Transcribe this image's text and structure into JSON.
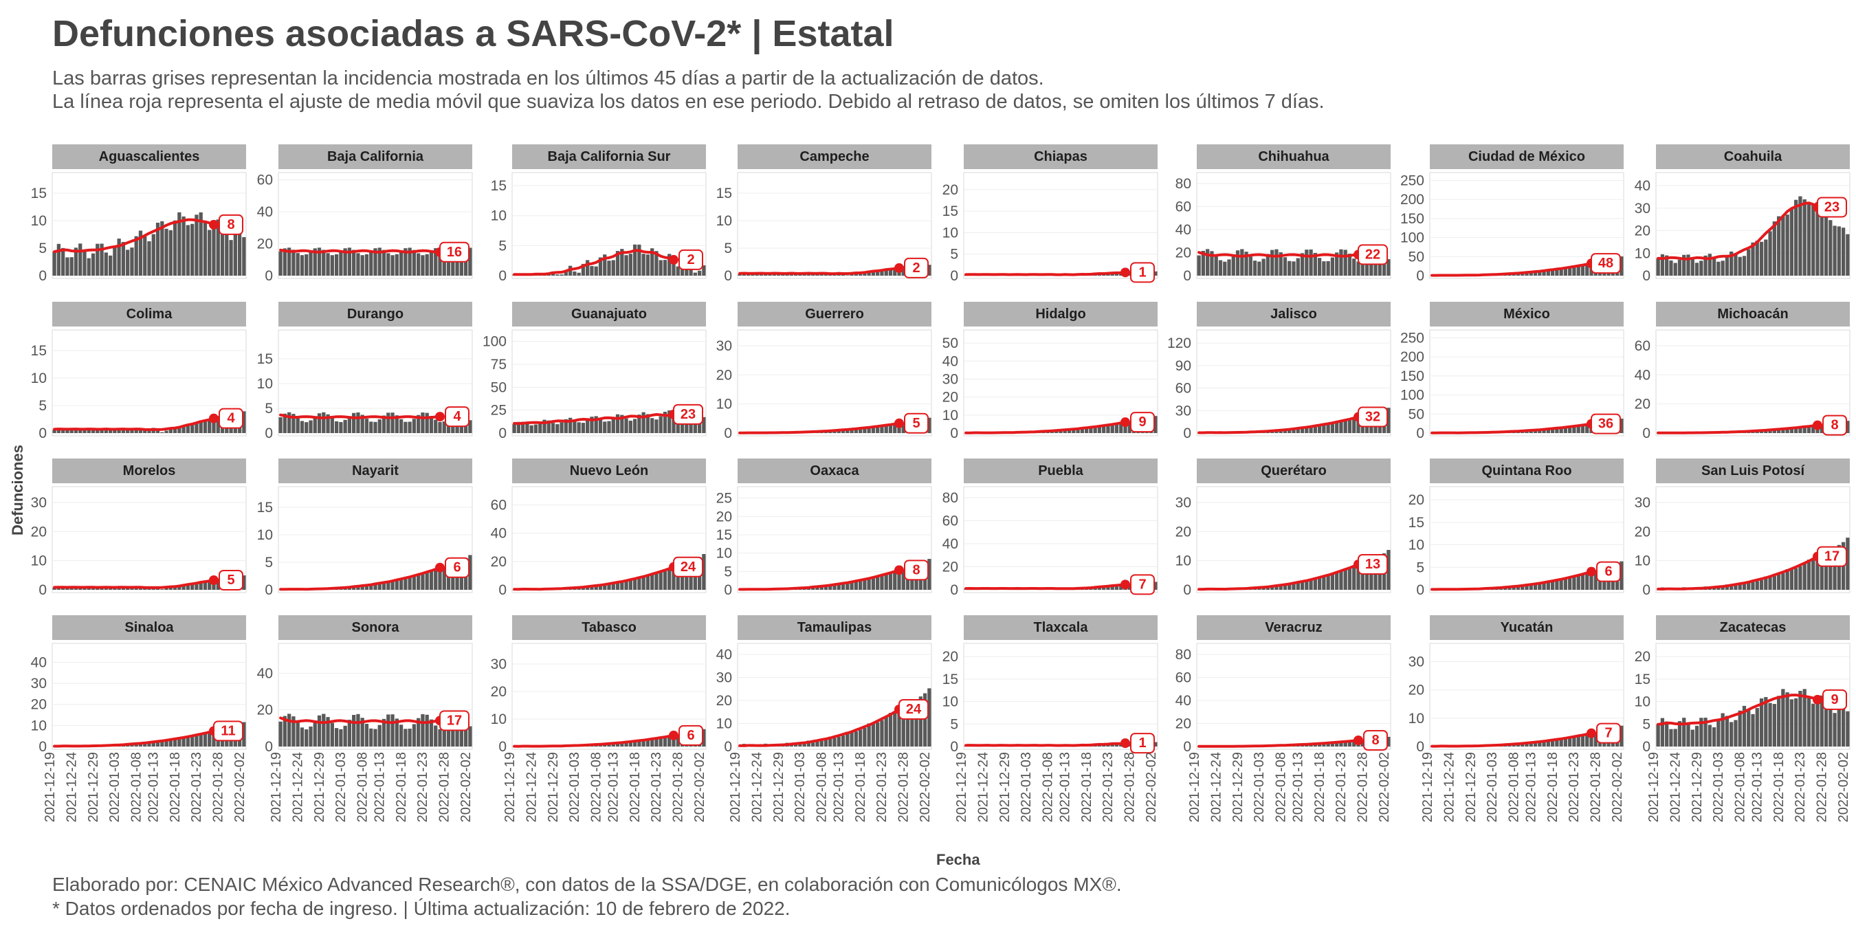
{
  "title": "Defunciones asociadas a SARS-CoV-2* | Estatal",
  "subtitle": {
    "line1": "Las barras grises representan la incidencia mostrada en los últimos 45 días a partir de la actualización de datos.",
    "line2": "La línea roja representa el ajuste de media móvil que suaviza los datos en ese periodo. Debido al retraso de datos, se omiten los últimos 7 días."
  },
  "footer": {
    "line1": "Elaborado por: CENAIC México Advanced Research®, con datos de la SSA/DGE, en colaboración con Comunicólogos MX®.",
    "line2": "* Datos ordenados por fecha de ingreso. | Última actualización: 10 de febrero de 2022."
  },
  "chart_data": {
    "type": "bar",
    "xlabel": "Fecha",
    "ylabel": "Defunciones",
    "x_ticks": [
      "2021-12-19",
      "2021-12-24",
      "2021-12-29",
      "2022-01-03",
      "2022-01-08",
      "2022-01-13",
      "2022-01-18",
      "2022-01-23",
      "2022-01-28",
      "2022-02-02"
    ],
    "colors": {
      "bar": "#595959",
      "line": "#e31a1c",
      "strip": "#b3b3b3",
      "label_text": "#e31a1c"
    },
    "facets": [
      {
        "name": "Aguascalientes",
        "yticks": [
          0,
          5,
          10,
          15
        ],
        "ymax": 18,
        "last": 8,
        "pattern": "bumpy-mid"
      },
      {
        "name": "Baja California",
        "yticks": [
          0,
          20,
          40,
          60
        ],
        "ymax": 62,
        "last": 16,
        "pattern": "flat-high"
      },
      {
        "name": "Baja California Sur",
        "yticks": [
          0,
          5,
          10,
          15
        ],
        "ymax": 16.5,
        "last": 2,
        "pattern": "mid-peak"
      },
      {
        "name": "Campeche",
        "yticks": [
          0,
          5,
          10,
          15
        ],
        "ymax": 18,
        "last": 2,
        "pattern": "late-small"
      },
      {
        "name": "Chiapas",
        "yticks": [
          0,
          5,
          10,
          15,
          20
        ],
        "ymax": 23,
        "last": 1,
        "pattern": "late-small"
      },
      {
        "name": "Chihuahua",
        "yticks": [
          0,
          20,
          40,
          60,
          80
        ],
        "ymax": 86,
        "last": 22,
        "pattern": "flat-mid"
      },
      {
        "name": "Ciudad de México",
        "yticks": [
          0,
          50,
          100,
          150,
          200,
          250
        ],
        "ymax": 260,
        "last": 48,
        "pattern": "late-rise"
      },
      {
        "name": "Coahuila",
        "yticks": [
          0,
          10,
          20,
          30,
          40
        ],
        "ymax": 44,
        "last": 23,
        "pattern": "peak-late"
      },
      {
        "name": "Colima",
        "yticks": [
          0,
          5,
          10,
          15
        ],
        "ymax": 18,
        "last": 4,
        "pattern": "late-small"
      },
      {
        "name": "Durango",
        "yticks": [
          0,
          5,
          10,
          15
        ],
        "ymax": 20,
        "last": 4,
        "pattern": "flat-mid"
      },
      {
        "name": "Guanajuato",
        "yticks": [
          0,
          25,
          50,
          75,
          100
        ],
        "ymax": 108,
        "last": 23,
        "pattern": "rise-flat"
      },
      {
        "name": "Guerrero",
        "yticks": [
          0,
          10,
          20,
          30
        ],
        "ymax": 34,
        "last": 5,
        "pattern": "late-rise"
      },
      {
        "name": "Hidalgo",
        "yticks": [
          0,
          10,
          20,
          30,
          40,
          50
        ],
        "ymax": 55,
        "last": 9,
        "pattern": "late-rise"
      },
      {
        "name": "Jalisco",
        "yticks": [
          0,
          30,
          60,
          90,
          120
        ],
        "ymax": 132,
        "last": 32,
        "pattern": "late-rise"
      },
      {
        "name": "México",
        "yticks": [
          0,
          50,
          100,
          150,
          200,
          250
        ],
        "ymax": 260,
        "last": 36,
        "pattern": "late-rise"
      },
      {
        "name": "Michoacán",
        "yticks": [
          0,
          20,
          40,
          60
        ],
        "ymax": 68,
        "last": 8,
        "pattern": "late-rise"
      },
      {
        "name": "Morelos",
        "yticks": [
          0,
          10,
          20,
          30
        ],
        "ymax": 34,
        "last": 5,
        "pattern": "late-small"
      },
      {
        "name": "Nayarit",
        "yticks": [
          0,
          5,
          10,
          15
        ],
        "ymax": 18,
        "last": 6,
        "pattern": "late-rise"
      },
      {
        "name": "Nuevo León",
        "yticks": [
          0,
          20,
          40,
          60
        ],
        "ymax": 70,
        "last": 24,
        "pattern": "late-rise"
      },
      {
        "name": "Oaxaca",
        "yticks": [
          0,
          5,
          10,
          15,
          20,
          25
        ],
        "ymax": 27,
        "last": 8,
        "pattern": "late-rise"
      },
      {
        "name": "Puebla",
        "yticks": [
          0,
          20,
          40,
          60,
          80
        ],
        "ymax": 86,
        "last": 7,
        "pattern": "late-small"
      },
      {
        "name": "Querétaro",
        "yticks": [
          0,
          10,
          20,
          30
        ],
        "ymax": 34,
        "last": 13,
        "pattern": "late-rise"
      },
      {
        "name": "Quintana Roo",
        "yticks": [
          0,
          5,
          10,
          15,
          20
        ],
        "ymax": 22,
        "last": 6,
        "pattern": "late-rise"
      },
      {
        "name": "San Luis Potosí",
        "yticks": [
          0,
          10,
          20,
          30
        ],
        "ymax": 34,
        "last": 17,
        "pattern": "late-rise"
      },
      {
        "name": "Sinaloa",
        "yticks": [
          0,
          10,
          20,
          30,
          40
        ],
        "ymax": 47,
        "last": 11,
        "pattern": "late-rise"
      },
      {
        "name": "Sonora",
        "yticks": [
          0,
          20,
          40
        ],
        "ymax": 54,
        "last": 17,
        "pattern": "flat-mid"
      },
      {
        "name": "Tabasco",
        "yticks": [
          0,
          10,
          20,
          30
        ],
        "ymax": 36,
        "last": 6,
        "pattern": "late-rise"
      },
      {
        "name": "Tamaulipas",
        "yticks": [
          0,
          10,
          20,
          30,
          40
        ],
        "ymax": 43,
        "last": 24,
        "pattern": "late-rise"
      },
      {
        "name": "Tlaxcala",
        "yticks": [
          0,
          5,
          10,
          15,
          20
        ],
        "ymax": 22,
        "last": 1,
        "pattern": "late-small"
      },
      {
        "name": "Veracruz",
        "yticks": [
          0,
          20,
          40,
          60,
          80
        ],
        "ymax": 86,
        "last": 8,
        "pattern": "late-rise"
      },
      {
        "name": "Yucatán",
        "yticks": [
          0,
          10,
          20,
          30
        ],
        "ymax": 35,
        "last": 7,
        "pattern": "late-rise"
      },
      {
        "name": "Zacatecas",
        "yticks": [
          0,
          5,
          10,
          15,
          20
        ],
        "ymax": 22,
        "last": 9,
        "pattern": "bumpy-mid"
      }
    ]
  }
}
